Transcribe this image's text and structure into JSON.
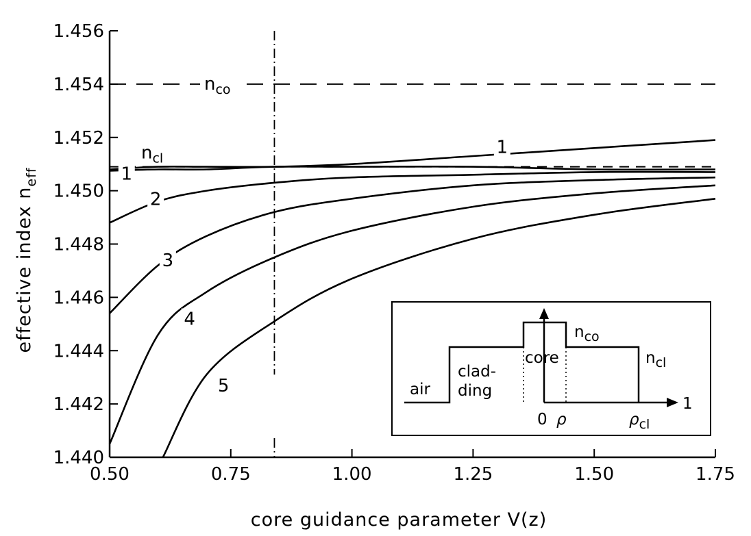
{
  "chart_data": {
    "type": "line",
    "xlabel": "core guidance parameter V(z)",
    "ylabel": "effective index n",
    "ylabel_sub": "eff",
    "xlim": [
      0.5,
      1.75
    ],
    "ylim": [
      1.44,
      1.456
    ],
    "xticks": [
      "0.50",
      "0.75",
      "1.00",
      "1.25",
      "1.50",
      "1.75"
    ],
    "xtick_values": [
      0.5,
      0.75,
      1.0,
      1.25,
      1.5,
      1.75
    ],
    "yticks": [
      "1.440",
      "1.442",
      "1.444",
      "1.446",
      "1.448",
      "1.450",
      "1.452",
      "1.454",
      "1.456"
    ],
    "ytick_values": [
      1.44,
      1.442,
      1.444,
      1.446,
      1.448,
      1.45,
      1.452,
      1.454,
      1.456
    ],
    "reference_lines": [
      {
        "base": "n",
        "sub": "co",
        "value": 1.454,
        "style": "dashed"
      },
      {
        "base": "n",
        "sub": "cl",
        "value": 1.4509,
        "style": "dashed"
      }
    ],
    "vertical_marker": {
      "x": 0.84,
      "y_from": 1.4431,
      "y_to": 1.456,
      "style": "dash-dot"
    },
    "x": [
      0.5,
      0.6,
      0.7,
      0.84,
      1.0,
      1.25,
      1.5,
      1.75
    ],
    "series": [
      {
        "label": "1",
        "values": [
          1.4508,
          1.4509,
          1.4509,
          1.4509,
          1.451,
          1.4513,
          1.4516,
          1.4519
        ]
      },
      {
        "label": "1",
        "values": [
          1.45075,
          1.4508,
          1.4508,
          1.4509,
          1.4509,
          1.4509,
          1.4508,
          1.4508
        ]
      },
      {
        "label": "2",
        "values": [
          1.4488,
          1.4496,
          1.45,
          1.4503,
          1.4505,
          1.4506,
          1.4507,
          1.4507
        ]
      },
      {
        "label": "3",
        "values": [
          1.4454,
          1.4472,
          1.4483,
          1.4492,
          1.4497,
          1.4502,
          1.4504,
          1.4505
        ]
      },
      {
        "label": "4",
        "values": [
          1.4405,
          1.4446,
          1.4462,
          1.4475,
          1.4485,
          1.4494,
          1.4499,
          1.4502
        ]
      },
      {
        "label": "5",
        "values": [
          null,
          null,
          1.4431,
          1.4451,
          1.4467,
          1.4482,
          1.4491,
          1.4497
        ]
      }
    ],
    "grid": false,
    "inset": {
      "labels": {
        "air": "air",
        "clad1": "clad-",
        "clad2": "ding",
        "core": "core",
        "nco_base": "n",
        "nco_sub": "co",
        "ncl_base": "n",
        "ncl_sub": "cl",
        "zero": "0",
        "rho": "ρ",
        "rhocl_base": "ρ",
        "rhocl_sub": "cl",
        "one": "1"
      }
    }
  }
}
